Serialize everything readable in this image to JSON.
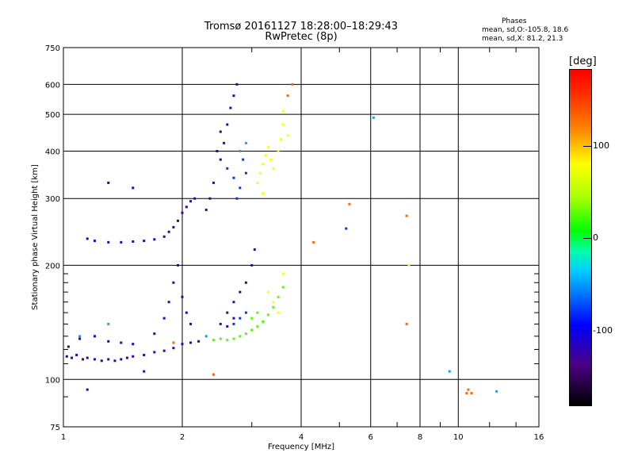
{
  "title_line1": "Tromsø 20161127 18:28:00–18:29:43",
  "title_line2": "RwPretec (8p)",
  "stats": {
    "heading": "Phases",
    "line0": "mean, sd,O:-105.8, 18.6",
    "line1": "mean, sd,X:  81.2, 21.3"
  },
  "colorbar": {
    "unit_label": "[deg]",
    "tick_100": "100",
    "tick_0": "0",
    "tick_m100": "-100"
  },
  "chart_data": {
    "type": "scatter",
    "xlabel": "Frequency [MHz]",
    "ylabel": "Stationary phase Virtual Height [km]",
    "x_scale": "log",
    "y_scale": "log",
    "xlim": [
      1,
      16
    ],
    "ylim": [
      75,
      750
    ],
    "x_ticks": [
      1,
      2,
      4,
      6,
      8,
      10,
      16
    ],
    "y_ticks": [
      75,
      100,
      200,
      300,
      400,
      500,
      600,
      750
    ],
    "grid": true,
    "colorbar": {
      "min": -180,
      "max": 180,
      "label": "[deg]"
    },
    "series": [
      {
        "phase": -120,
        "points": [
          [
            1.02,
            115
          ],
          [
            1.05,
            114
          ],
          [
            1.08,
            116
          ],
          [
            1.12,
            113
          ],
          [
            1.15,
            114
          ],
          [
            1.2,
            113
          ],
          [
            1.25,
            112
          ],
          [
            1.3,
            113
          ],
          [
            1.35,
            112
          ],
          [
            1.4,
            113
          ],
          [
            1.45,
            114
          ],
          [
            1.5,
            115
          ],
          [
            1.6,
            116
          ],
          [
            1.7,
            118
          ],
          [
            1.8,
            119
          ],
          [
            1.9,
            121
          ],
          [
            2.0,
            124
          ],
          [
            2.1,
            125
          ],
          [
            2.2,
            126
          ],
          [
            1.03,
            122
          ],
          [
            1.1,
            128
          ],
          [
            1.2,
            130
          ],
          [
            1.3,
            126
          ],
          [
            1.4,
            125
          ],
          [
            1.5,
            124
          ],
          [
            1.7,
            132
          ],
          [
            1.8,
            145
          ],
          [
            1.85,
            160
          ],
          [
            1.9,
            180
          ],
          [
            1.95,
            200
          ],
          [
            2.0,
            165
          ],
          [
            2.05,
            150
          ],
          [
            2.1,
            140
          ],
          [
            1.15,
            235
          ],
          [
            1.2,
            232
          ],
          [
            1.3,
            230
          ],
          [
            1.4,
            230
          ],
          [
            1.5,
            231
          ],
          [
            1.6,
            232
          ],
          [
            1.7,
            234
          ],
          [
            1.8,
            238
          ],
          [
            1.85,
            245
          ],
          [
            1.9,
            252
          ],
          [
            1.95,
            262
          ],
          [
            2.0,
            275
          ],
          [
            2.05,
            285
          ],
          [
            2.1,
            295
          ],
          [
            2.15,
            300
          ],
          [
            2.3,
            280
          ],
          [
            2.35,
            300
          ],
          [
            2.4,
            330
          ],
          [
            2.5,
            380
          ],
          [
            2.55,
            420
          ],
          [
            2.6,
            470
          ],
          [
            2.65,
            520
          ],
          [
            2.7,
            560
          ],
          [
            2.75,
            600
          ],
          [
            2.5,
            450
          ],
          [
            2.45,
            400
          ],
          [
            2.5,
            140
          ],
          [
            2.6,
            150
          ],
          [
            2.7,
            160
          ],
          [
            2.8,
            170
          ],
          [
            2.9,
            180
          ],
          [
            3.0,
            200
          ],
          [
            3.05,
            220
          ],
          [
            2.7,
            145
          ],
          [
            2.6,
            138
          ],
          [
            1.3,
            330
          ],
          [
            1.5,
            320
          ],
          [
            1.15,
            94
          ],
          [
            1.6,
            105
          ]
        ]
      },
      {
        "phase": -80,
        "points": [
          [
            2.6,
            360
          ],
          [
            2.7,
            340
          ],
          [
            2.8,
            320
          ],
          [
            2.9,
            350
          ],
          [
            2.75,
            300
          ],
          [
            2.85,
            380
          ],
          [
            2.7,
            140
          ],
          [
            2.8,
            145
          ],
          [
            2.9,
            150
          ],
          [
            5.2,
            250
          ]
        ]
      },
      {
        "phase": -40,
        "points": [
          [
            1.1,
            130
          ],
          [
            1.3,
            140
          ],
          [
            2.8,
            400
          ],
          [
            2.9,
            420
          ],
          [
            6.1,
            490
          ],
          [
            9.5,
            105
          ],
          [
            2.3,
            130
          ],
          [
            12.5,
            93
          ]
        ]
      },
      {
        "phase": 40,
        "points": [
          [
            2.5,
            128
          ],
          [
            2.6,
            127
          ],
          [
            2.7,
            128
          ],
          [
            2.8,
            130
          ],
          [
            2.9,
            132
          ],
          [
            3.0,
            135
          ],
          [
            3.1,
            138
          ],
          [
            3.2,
            142
          ],
          [
            3.3,
            148
          ],
          [
            3.4,
            155
          ],
          [
            3.5,
            165
          ],
          [
            3.6,
            175
          ],
          [
            2.4,
            127
          ],
          [
            3.0,
            145
          ],
          [
            3.1,
            150
          ]
        ]
      },
      {
        "phase": 100,
        "points": [
          [
            3.1,
            330
          ],
          [
            3.15,
            350
          ],
          [
            3.2,
            370
          ],
          [
            3.25,
            390
          ],
          [
            3.3,
            410
          ],
          [
            3.35,
            380
          ],
          [
            3.4,
            360
          ],
          [
            3.5,
            400
          ],
          [
            3.55,
            430
          ],
          [
            3.6,
            470
          ],
          [
            3.6,
            510
          ],
          [
            3.7,
            440
          ],
          [
            3.3,
            170
          ],
          [
            3.4,
            160
          ],
          [
            3.5,
            150
          ],
          [
            3.6,
            190
          ],
          [
            3.2,
            310
          ],
          [
            7.5,
            200
          ]
        ]
      },
      {
        "phase": 150,
        "points": [
          [
            3.7,
            560
          ],
          [
            3.8,
            600
          ],
          [
            4.3,
            230
          ],
          [
            5.3,
            290
          ],
          [
            7.4,
            270
          ],
          [
            7.4,
            140
          ],
          [
            10.5,
            92
          ],
          [
            10.6,
            94
          ],
          [
            10.8,
            92
          ],
          [
            1.9,
            125
          ],
          [
            2.4,
            103
          ]
        ]
      }
    ]
  }
}
